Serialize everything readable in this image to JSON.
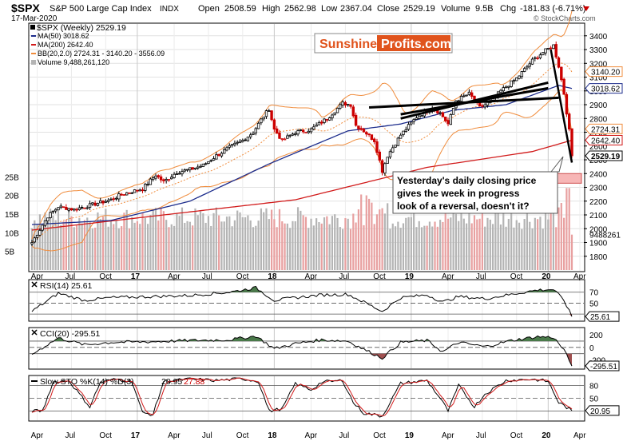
{
  "header": {
    "symbol": "$SPX",
    "name": "S&P 500 Large Cap Index",
    "exchange": "INDX",
    "date": "17-Mar-2020",
    "open_label": "Open",
    "open": "2508.59",
    "high_label": "High",
    "high": "2562.98",
    "low_label": "Low",
    "low": "2367.04",
    "close_label": "Close",
    "close": "2529.19",
    "volume_label": "Volume",
    "volume": "9.5B",
    "chg_label": "Chg",
    "chg": "-181.83 (-6.71%)",
    "watermark": "© StockCharts.com"
  },
  "legend": {
    "price": "$SPX (Weekly) 2529.19",
    "ma50": "MA(50) 3018.62",
    "ma200": "MA(200) 2642.40",
    "bb": "BB(20,2.0) 2724.31 - 3140.20 - 3556.09",
    "volume": "Volume 9,488,261,120"
  },
  "logo": {
    "part1": "Sunshine",
    "part2": "Profits.com"
  },
  "annotation": {
    "line1": "Yesterday's daily closing price",
    "line2": "gives the week in progress",
    "line3": "look of a reversal, doesn't it?"
  },
  "colors": {
    "price_up": "#000000",
    "price_down": "#cc0000",
    "ma50": "#1c2c8c",
    "ma200": "#d11a1a",
    "bb": "#f08c3c",
    "volume_up": "#b4b4b4",
    "volume_down": "#e8a0a0",
    "support_zone": "#f7b6b6",
    "osc_fill": "#4a7a4a"
  },
  "chart_data": [
    {
      "type": "candlestick",
      "title": "$SPX (Weekly) S&P 500 Large Cap Index",
      "yaxis_side": "right",
      "ylim": [
        1700,
        3480
      ],
      "y_ticks": [
        1800,
        1900,
        2000,
        2100,
        2200,
        2300,
        2400,
        2500,
        2600,
        2700,
        2800,
        2900,
        3000,
        3100,
        3200,
        3300,
        3400
      ],
      "x_ticks": [
        "Apr",
        "Jul",
        "Oct",
        "17",
        "Apr",
        "Jul",
        "Oct",
        "18",
        "Apr",
        "Jul",
        "Oct",
        "19",
        "Apr",
        "Jul",
        "Oct",
        "20",
        "Apr"
      ],
      "price_labels": [
        {
          "text": "3140.20",
          "value": 3140.2,
          "series": "bb"
        },
        {
          "text": "3018.62",
          "value": 3018.62,
          "series": "ma50"
        },
        {
          "text": "2724.31",
          "value": 2724.31,
          "series": "bb"
        },
        {
          "text": "2642.40",
          "value": 2642.4,
          "series": "ma200"
        },
        {
          "text": "2529.19",
          "value": 2529.19,
          "series": "price"
        }
      ],
      "support_zone": [
        2330,
        2400
      ],
      "anchors": [
        [
          0,
          1900
        ],
        [
          6,
          2090
        ],
        [
          10,
          2160
        ],
        [
          16,
          2140
        ],
        [
          22,
          2170
        ],
        [
          26,
          2190
        ],
        [
          30,
          2210
        ],
        [
          34,
          2250
        ],
        [
          38,
          2270
        ],
        [
          42,
          2290
        ],
        [
          47,
          2390
        ],
        [
          50,
          2340
        ],
        [
          55,
          2410
        ],
        [
          60,
          2430
        ],
        [
          65,
          2460
        ],
        [
          70,
          2530
        ],
        [
          75,
          2590
        ],
        [
          80,
          2640
        ],
        [
          84,
          2700
        ],
        [
          87,
          2790
        ],
        [
          90,
          2870
        ],
        [
          92,
          2720
        ],
        [
          95,
          2640
        ],
        [
          100,
          2700
        ],
        [
          106,
          2720
        ],
        [
          112,
          2800
        ],
        [
          118,
          2910
        ],
        [
          121,
          2900
        ],
        [
          123,
          2750
        ],
        [
          126,
          2710
        ],
        [
          130,
          2640
        ],
        [
          133,
          2420
        ],
        [
          135,
          2530
        ],
        [
          140,
          2680
        ],
        [
          146,
          2810
        ],
        [
          152,
          2880
        ],
        [
          155,
          2840
        ],
        [
          158,
          2760
        ],
        [
          161,
          2930
        ],
        [
          166,
          2980
        ],
        [
          170,
          2880
        ],
        [
          174,
          2920
        ],
        [
          178,
          3000
        ],
        [
          184,
          3090
        ],
        [
          190,
          3220
        ],
        [
          194,
          3280
        ],
        [
          198,
          3330
        ],
        [
          200,
          3180
        ],
        [
          202,
          2980
        ],
        [
          204,
          2710
        ],
        [
          205,
          2529
        ]
      ],
      "ma200_anchors": [
        [
          0,
          1990
        ],
        [
          50,
          2100
        ],
        [
          100,
          2210
        ],
        [
          150,
          2445
        ],
        [
          190,
          2560
        ],
        [
          205,
          2642
        ]
      ],
      "ma50_anchors": [
        [
          0,
          2030
        ],
        [
          30,
          2060
        ],
        [
          60,
          2200
        ],
        [
          90,
          2470
        ],
        [
          120,
          2710
        ],
        [
          140,
          2760
        ],
        [
          160,
          2860
        ],
        [
          180,
          2900
        ],
        [
          200,
          3040
        ],
        [
          205,
          3018
        ]
      ],
      "channel_lines": [
        {
          "from": [
            140,
            2830
          ],
          "to": [
            196,
            3020
          ]
        },
        {
          "from": [
            140,
            2800
          ],
          "to": [
            196,
            3060
          ]
        },
        {
          "from": [
            128,
            2880
          ],
          "to": [
            200,
            2950
          ]
        }
      ],
      "volume_axis": {
        "ylim": [
          0,
          27
        ],
        "ticks": [
          5,
          10,
          15,
          20,
          25
        ],
        "tick_labels": [
          "5B",
          "10B",
          "15B",
          "20B",
          "25B"
        ],
        "last_label": "9488261"
      }
    },
    {
      "type": "line",
      "title": "RSI(14) 25.61",
      "ylim": [
        20,
        90
      ],
      "levels": [
        70,
        50,
        30
      ],
      "y_ticks": [
        70,
        50,
        30
      ],
      "last_value": 25.61,
      "anchors": [
        [
          0,
          35
        ],
        [
          10,
          68
        ],
        [
          20,
          55
        ],
        [
          30,
          60
        ],
        [
          45,
          62
        ],
        [
          60,
          64
        ],
        [
          75,
          70
        ],
        [
          85,
          78
        ],
        [
          92,
          55
        ],
        [
          100,
          60
        ],
        [
          110,
          65
        ],
        [
          120,
          66
        ],
        [
          126,
          52
        ],
        [
          133,
          35
        ],
        [
          140,
          60
        ],
        [
          150,
          65
        ],
        [
          156,
          52
        ],
        [
          162,
          62
        ],
        [
          172,
          58
        ],
        [
          182,
          66
        ],
        [
          192,
          74
        ],
        [
          198,
          75
        ],
        [
          202,
          55
        ],
        [
          205,
          25.61
        ]
      ]
    },
    {
      "type": "line",
      "title": "CCI(20) -295.51",
      "ylim": [
        -320,
        290
      ],
      "levels": [
        100,
        0,
        -100
      ],
      "y_ticks": [
        200,
        0,
        -200
      ],
      "last_value": -295.51,
      "anchors": [
        [
          0,
          -110
        ],
        [
          10,
          150
        ],
        [
          20,
          40
        ],
        [
          30,
          80
        ],
        [
          45,
          90
        ],
        [
          60,
          110
        ],
        [
          75,
          120
        ],
        [
          85,
          180
        ],
        [
          92,
          -20
        ],
        [
          100,
          60
        ],
        [
          110,
          120
        ],
        [
          120,
          100
        ],
        [
          126,
          -30
        ],
        [
          133,
          -170
        ],
        [
          140,
          80
        ],
        [
          150,
          110
        ],
        [
          156,
          -70
        ],
        [
          162,
          80
        ],
        [
          172,
          10
        ],
        [
          182,
          110
        ],
        [
          192,
          170
        ],
        [
          198,
          160
        ],
        [
          202,
          -40
        ],
        [
          205,
          -295.51
        ]
      ]
    },
    {
      "type": "line",
      "title": "Slow STO %K(14) %D(3) 20.95, 27.88",
      "k_value": "20.95",
      "d_value": "27.88",
      "ylim": [
        0,
        100
      ],
      "levels": [
        80,
        50,
        20
      ],
      "y_ticks": [
        80,
        50,
        20
      ],
      "last_value": 20.95,
      "anchors": [
        [
          0,
          20
        ],
        [
          4,
          20
        ],
        [
          8,
          88
        ],
        [
          14,
          92
        ],
        [
          18,
          60
        ],
        [
          22,
          30
        ],
        [
          26,
          88
        ],
        [
          32,
          95
        ],
        [
          38,
          90
        ],
        [
          42,
          15
        ],
        [
          46,
          12
        ],
        [
          50,
          90
        ],
        [
          60,
          95
        ],
        [
          70,
          92
        ],
        [
          80,
          96
        ],
        [
          86,
          90
        ],
        [
          90,
          20
        ],
        [
          95,
          25
        ],
        [
          100,
          85
        ],
        [
          106,
          70
        ],
        [
          110,
          88
        ],
        [
          118,
          92
        ],
        [
          122,
          40
        ],
        [
          126,
          15
        ],
        [
          133,
          8
        ],
        [
          140,
          85
        ],
        [
          150,
          92
        ],
        [
          155,
          50
        ],
        [
          158,
          20
        ],
        [
          162,
          80
        ],
        [
          168,
          30
        ],
        [
          172,
          60
        ],
        [
          180,
          92
        ],
        [
          190,
          95
        ],
        [
          196,
          90
        ],
        [
          200,
          40
        ],
        [
          205,
          20.95
        ]
      ]
    }
  ]
}
